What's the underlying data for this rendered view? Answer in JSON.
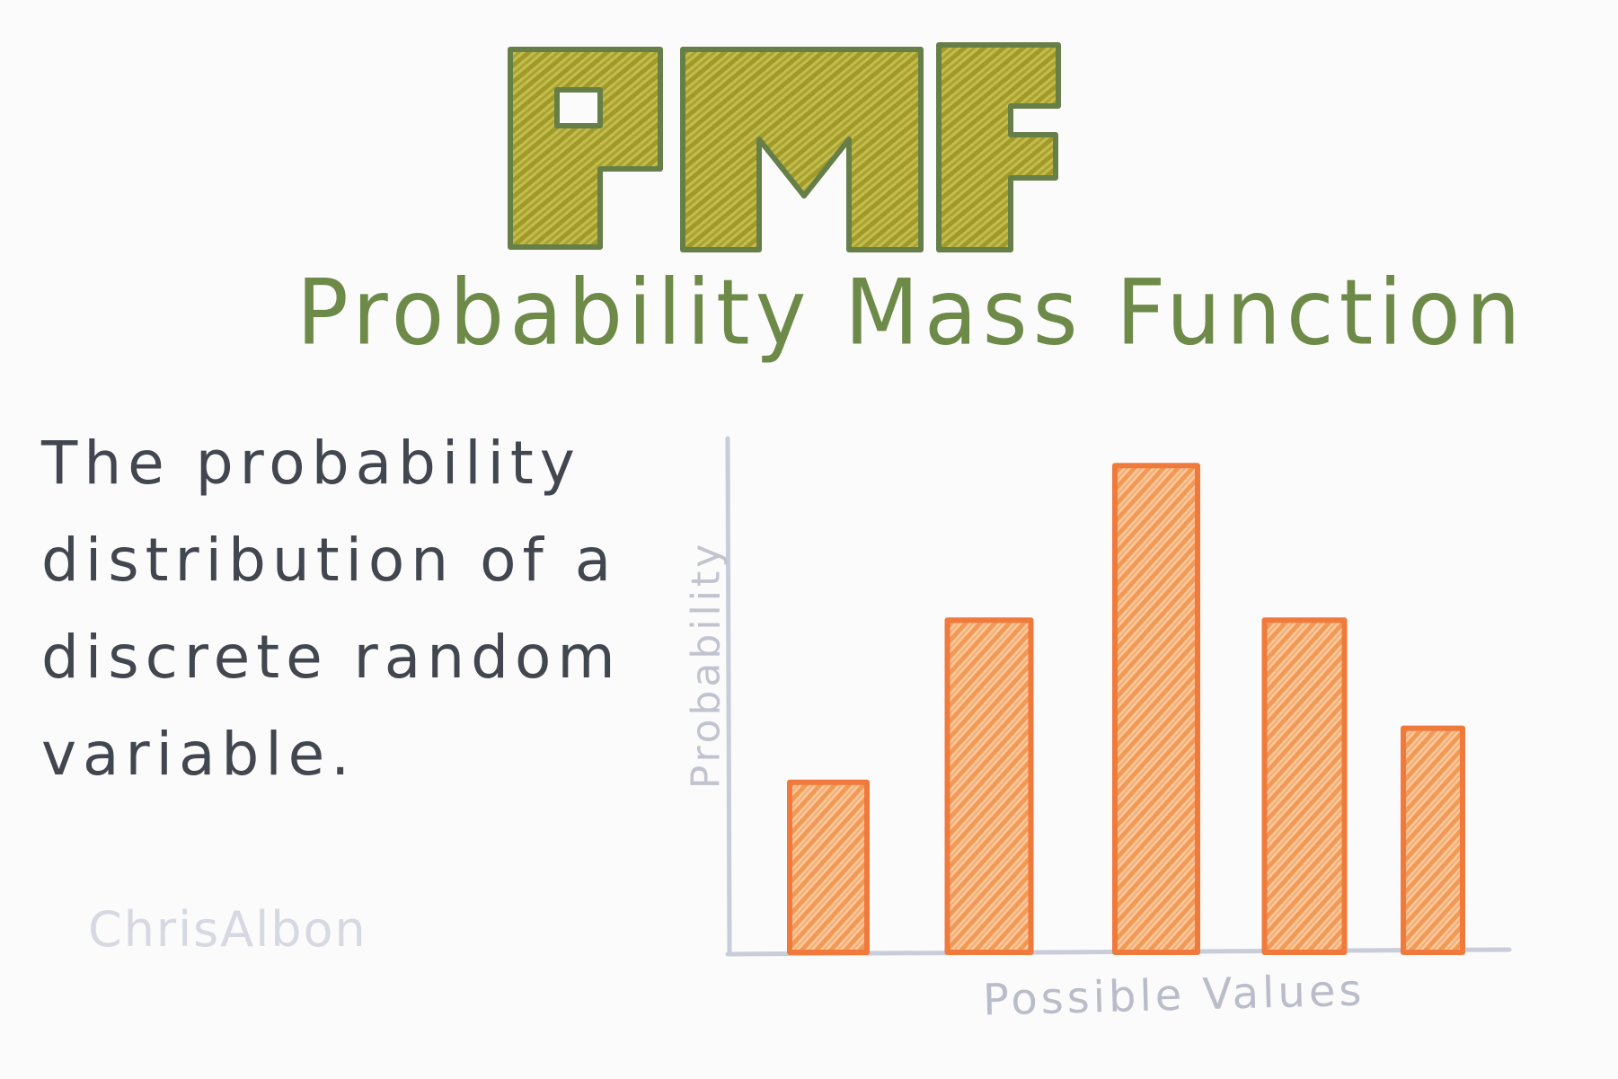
{
  "title": {
    "acronym": "PMF",
    "full": "Probability Mass Function"
  },
  "definition_lines": [
    "The probability",
    "distribution of a",
    "discrete random",
    "variable."
  ],
  "signature": "ChrisAlbon",
  "colors": {
    "acronym_fill": "#b5ad3a",
    "acronym_outline": "#667f48",
    "subtitle": "#6d8a48",
    "definition": "#41464f",
    "bar_outline": "#f07a3c",
    "bar_fill": "#f6a25e",
    "axis": "#c9ccd9",
    "labels": "#b9bcc9"
  },
  "chart_data": {
    "type": "bar",
    "xlabel": "Possible Values",
    "ylabel": "Probability",
    "values": [
      0.22,
      0.43,
      0.63,
      0.43,
      0.29
    ],
    "ylim": [
      0,
      1
    ],
    "grid": false
  }
}
